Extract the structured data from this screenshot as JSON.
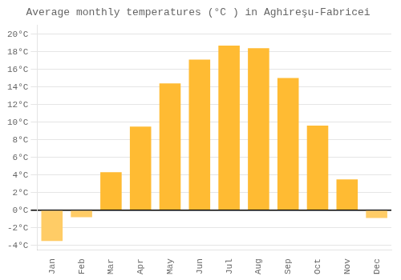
{
  "chart_data": {
    "type": "bar",
    "title": "Average monthly temperatures (°C ) in Aghireşu-Fabricei",
    "categories": [
      "Jan",
      "Feb",
      "Mar",
      "Apr",
      "May",
      "Jun",
      "Jul",
      "Aug",
      "Sep",
      "Oct",
      "Nov",
      "Dec"
    ],
    "values": [
      -3.5,
      -0.8,
      4.3,
      9.5,
      14.4,
      17.1,
      18.7,
      18.4,
      15.0,
      9.6,
      3.5,
      -0.9
    ],
    "colors": [
      "#FFCC66",
      "#FFCC66",
      "#FFBB33",
      "#FFBB33",
      "#FFBB33",
      "#FFBB33",
      "#FFBB33",
      "#FFBB33",
      "#FFBB33",
      "#FFBB33",
      "#FFBB33",
      "#FFCC66"
    ],
    "ylim": [
      -4.5,
      21
    ],
    "yticks": [
      {
        "value": -4,
        "label": "-4°C"
      },
      {
        "value": -2,
        "label": "-2°C"
      },
      {
        "value": 0,
        "label": "0°C"
      },
      {
        "value": 2,
        "label": "2°C"
      },
      {
        "value": 4,
        "label": "4°C"
      },
      {
        "value": 6,
        "label": "6°C"
      },
      {
        "value": 8,
        "label": "8°C"
      },
      {
        "value": 10,
        "label": "10°C"
      },
      {
        "value": 12,
        "label": "12°C"
      },
      {
        "value": 14,
        "label": "14°C"
      },
      {
        "value": 16,
        "label": "16°C"
      },
      {
        "value": 18,
        "label": "18°C"
      },
      {
        "value": 20,
        "label": "20°C"
      }
    ],
    "grid": true
  }
}
